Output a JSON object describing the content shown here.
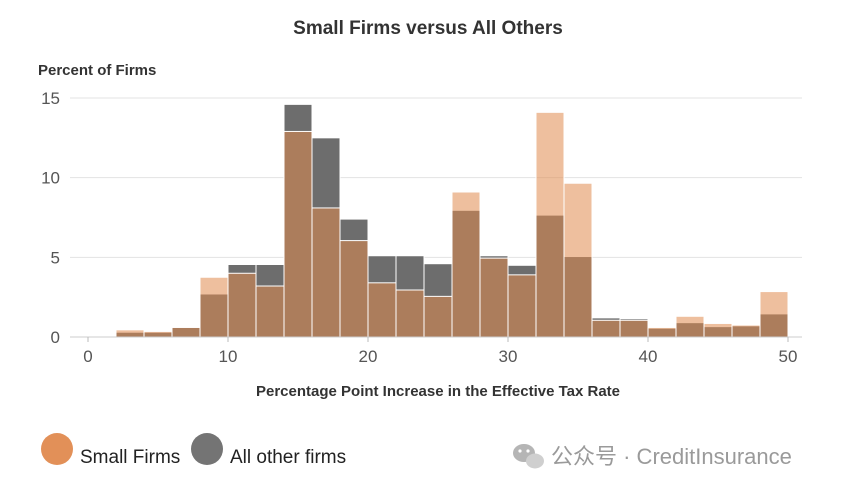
{
  "chart_data": {
    "type": "bar",
    "title": "Small Firms versus All Others",
    "ylabel": "Percent of Firms",
    "xlabel": "Percentage Point Increase in the Effective Tax Rate",
    "xlim": [
      0,
      50
    ],
    "ylim": [
      0,
      15
    ],
    "xticks": [
      "0",
      "10",
      "20",
      "30",
      "40",
      "50"
    ],
    "yticks": [
      "0",
      "5",
      "10",
      "15"
    ],
    "bin_width": 2,
    "bin_starts": [
      0,
      2,
      4,
      6,
      8,
      10,
      12,
      14,
      16,
      18,
      20,
      22,
      24,
      26,
      28,
      30,
      32,
      34,
      36,
      38,
      40,
      42,
      44,
      46,
      48
    ],
    "grid": "horizontal",
    "legend_position": "bottom-left",
    "series": [
      {
        "name": "Small Firms",
        "color": "#e08a4f",
        "values": [
          0.0,
          0.45,
          0.35,
          0.6,
          3.75,
          4.0,
          3.2,
          12.9,
          8.1,
          6.05,
          3.4,
          2.95,
          2.55,
          9.1,
          4.95,
          3.9,
          14.1,
          9.65,
          1.05,
          1.05,
          0.6,
          1.3,
          0.85,
          0.75,
          2.85
        ]
      },
      {
        "name": "All other firms",
        "color": "#6d6d6d",
        "values": [
          0.05,
          0.3,
          0.3,
          0.6,
          2.7,
          4.55,
          4.55,
          14.6,
          12.5,
          7.4,
          5.1,
          5.1,
          4.6,
          7.95,
          5.1,
          4.5,
          7.65,
          5.05,
          1.2,
          1.15,
          0.55,
          0.9,
          0.65,
          0.7,
          1.45
        ]
      }
    ]
  },
  "watermark": {
    "icon": "wechat-icon",
    "text": "公众号 · CreditInsurance"
  }
}
